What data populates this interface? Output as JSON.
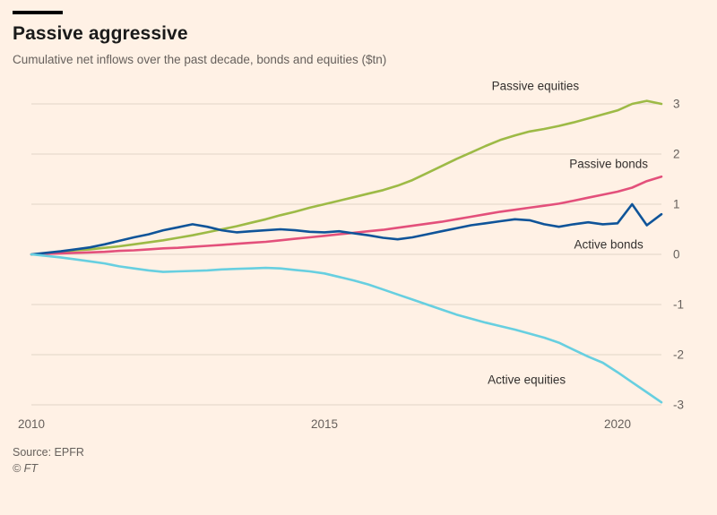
{
  "header": {
    "title": "Passive aggressive",
    "subtitle": "Cumulative net inflows over the past decade, bonds and equities ($tn)"
  },
  "footer": {
    "source": "Source: EPFR",
    "copyright": "© FT"
  },
  "colors": {
    "background": "#FFF1E5",
    "grid": "#e2d5c8",
    "text": "#33302e",
    "muted": "#66605c",
    "accent_bar": "#000000"
  },
  "chart_data": {
    "type": "line",
    "title": "Passive aggressive",
    "subtitle": "Cumulative net inflows over the past decade, bonds and equities ($tn)",
    "xlabel": "",
    "ylabel": "$tn",
    "xlim": [
      2010,
      2020.75
    ],
    "ylim": [
      -3,
      3
    ],
    "xticks": [
      2010,
      2015,
      2020
    ],
    "yticks": [
      3,
      2,
      1,
      0,
      -1,
      -2,
      -3
    ],
    "grid": "horizontal",
    "legend": "inline-annotations",
    "x": [
      2010,
      2010.25,
      2010.5,
      2010.75,
      2011,
      2011.25,
      2011.5,
      2011.75,
      2012,
      2012.25,
      2012.5,
      2012.75,
      2013,
      2013.25,
      2013.5,
      2013.75,
      2014,
      2014.25,
      2014.5,
      2014.75,
      2015,
      2015.25,
      2015.5,
      2015.75,
      2016,
      2016.25,
      2016.5,
      2016.75,
      2017,
      2017.25,
      2017.5,
      2017.75,
      2018,
      2018.25,
      2018.5,
      2018.75,
      2019,
      2019.25,
      2019.5,
      2019.75,
      2020,
      2020.25,
      2020.5,
      2020.75
    ],
    "series": [
      {
        "name": "Passive equities",
        "color": "#9dba46",
        "values": [
          0.0,
          0.02,
          0.05,
          0.08,
          0.1,
          0.13,
          0.16,
          0.2,
          0.24,
          0.28,
          0.33,
          0.38,
          0.44,
          0.5,
          0.56,
          0.63,
          0.7,
          0.78,
          0.85,
          0.93,
          1.0,
          1.07,
          1.14,
          1.21,
          1.28,
          1.37,
          1.48,
          1.62,
          1.76,
          1.9,
          2.03,
          2.16,
          2.28,
          2.37,
          2.45,
          2.5,
          2.56,
          2.63,
          2.71,
          2.79,
          2.87,
          3.0,
          3.06,
          3.0
        ]
      },
      {
        "name": "Passive bonds",
        "color": "#e3507b",
        "values": [
          0.0,
          0.01,
          0.02,
          0.03,
          0.04,
          0.05,
          0.07,
          0.08,
          0.1,
          0.12,
          0.13,
          0.15,
          0.17,
          0.19,
          0.21,
          0.23,
          0.25,
          0.28,
          0.31,
          0.34,
          0.37,
          0.4,
          0.43,
          0.46,
          0.49,
          0.53,
          0.57,
          0.61,
          0.65,
          0.7,
          0.75,
          0.8,
          0.85,
          0.89,
          0.93,
          0.97,
          1.01,
          1.07,
          1.13,
          1.19,
          1.25,
          1.33,
          1.46,
          1.55
        ]
      },
      {
        "name": "Active bonds",
        "color": "#0f5499",
        "values": [
          0.0,
          0.03,
          0.06,
          0.1,
          0.14,
          0.2,
          0.27,
          0.34,
          0.4,
          0.48,
          0.54,
          0.6,
          0.55,
          0.48,
          0.44,
          0.46,
          0.48,
          0.5,
          0.48,
          0.45,
          0.44,
          0.46,
          0.42,
          0.38,
          0.33,
          0.3,
          0.34,
          0.4,
          0.46,
          0.52,
          0.58,
          0.62,
          0.66,
          0.7,
          0.68,
          0.6,
          0.55,
          0.6,
          0.64,
          0.6,
          0.62,
          1.0,
          0.58,
          0.8
        ]
      },
      {
        "name": "Active equities",
        "color": "#67cfe0",
        "values": [
          0.0,
          -0.03,
          -0.06,
          -0.1,
          -0.14,
          -0.18,
          -0.24,
          -0.28,
          -0.32,
          -0.35,
          -0.34,
          -0.33,
          -0.32,
          -0.3,
          -0.29,
          -0.28,
          -0.27,
          -0.28,
          -0.31,
          -0.34,
          -0.38,
          -0.45,
          -0.52,
          -0.6,
          -0.7,
          -0.8,
          -0.9,
          -1.0,
          -1.1,
          -1.2,
          -1.28,
          -1.36,
          -1.43,
          -1.5,
          -1.58,
          -1.66,
          -1.76,
          -1.9,
          -2.04,
          -2.16,
          -2.35,
          -2.55,
          -2.75,
          -2.95
        ]
      }
    ],
    "annotations": [
      {
        "label": "Passive equities",
        "x": 2018.6,
        "y": 3.28
      },
      {
        "label": "Passive bonds",
        "x": 2019.85,
        "y": 1.72
      },
      {
        "label": "Active bonds",
        "x": 2019.85,
        "y": 0.12
      },
      {
        "label": "Active equities",
        "x": 2018.45,
        "y": -2.58
      }
    ]
  }
}
